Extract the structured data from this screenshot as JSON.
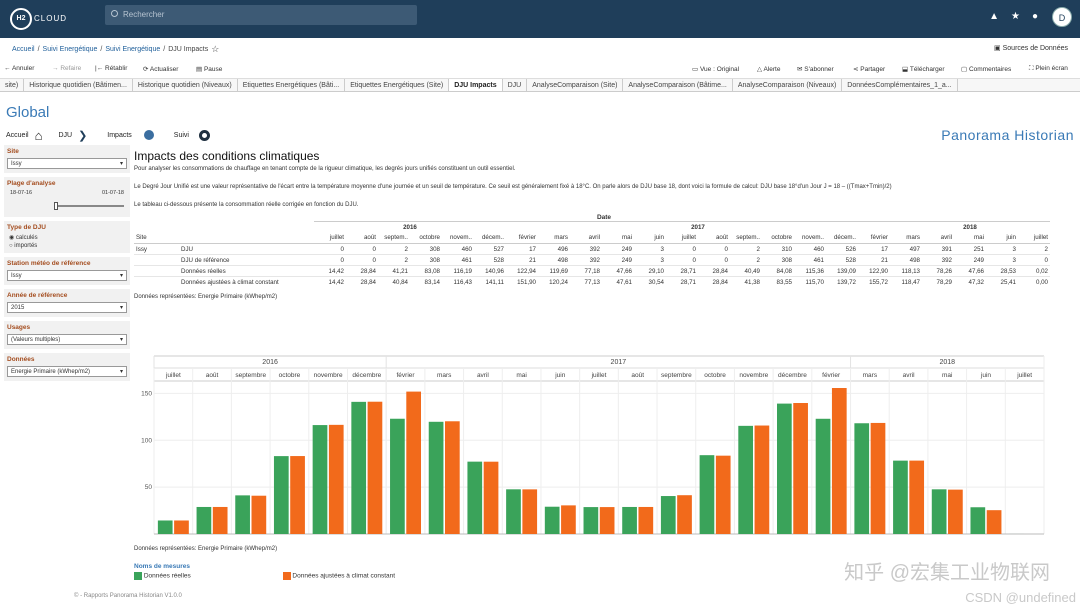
{
  "header": {
    "logo": "H2",
    "logo_text": "CLOUD",
    "search_placeholder": "Rechercher",
    "avatar": "D"
  },
  "breadcrumb": [
    "Accueil",
    "Suivi Energétique",
    "Suivi Energétique",
    "DJU Impacts"
  ],
  "data_sources": "Sources de Données",
  "toolbar": {
    "undo": "Annuler",
    "redo": "Refaire",
    "revert": "Rétablir",
    "refresh": "Actualiser",
    "pause": "Pause",
    "view": "Vue : Original",
    "alert": "Alerte",
    "subscribe": "S'abonner",
    "share": "Partager",
    "download": "Télécharger",
    "comments": "Commentaires",
    "fullscreen": "Plein écran"
  },
  "tabs": [
    "site)",
    "Historique quotidien (Bâtimen...",
    "Historique quotidien (Niveaux)",
    "Etiquettes Energétiques (Bâti...",
    "Etiquettes Energétiques (Site)",
    "DJU Impacts",
    "DJU",
    "AnalyseComparaison (Site)",
    "AnalyseComparaison (Bâtime...",
    "AnalyseComparaison (Niveaux)",
    "DonnéesComplémentaires_1_a..."
  ],
  "page_title": "Global",
  "nav": {
    "home": "Accueil",
    "dju": "DJU",
    "impacts": "Impacts",
    "suivi": "Suivi"
  },
  "brand": "Panorama Historian",
  "filters": {
    "site_label": "Site",
    "site_value": "Issy",
    "range_label": "Plage d'analyse",
    "range_start": "18-07-16",
    "range_end": "01-07-18",
    "dju_label": "Type de DJU",
    "dju_opt1": "calculés",
    "dju_opt2": "importés",
    "station_label": "Station météo de référence",
    "station_value": "Issy",
    "year_label": "Année de référence",
    "year_value": "2015",
    "usage_label": "Usages",
    "usage_value": "(Valeurs multiples)",
    "data_label": "Données",
    "data_value": "Energie Primaire (kWhep/m2)"
  },
  "content": {
    "title": "Impacts des conditions climatiques",
    "p1": "Pour analyser les consommations de chauffage en tenant compte de la rigueur climatique, les degrés jours unifiés constituent un outil essentiel.",
    "p2": "Le Degré Jour Unifié est une valeur représentative de l'écart entre la température moyenne d'une journée et un seuil de température. Ce seuil est généralement fixé à 18°C. On parle alors de DJU base 18, dont voici la formule de calcul: DJU base 18°d'un Jour J = 18 – ((Tmax+Tmin)/2)",
    "p3": "Le tableau ci-dessous présente la consommation réelle corrigée en fonction du DJU.",
    "date_label": "Date",
    "site_col": "Site",
    "site_name": "Issy",
    "note": "Données représentées: Energie Primaire (kWhep/m2)"
  },
  "table": {
    "years": [
      {
        "label": "2016",
        "span": 6
      },
      {
        "label": "2017",
        "span": 12
      },
      {
        "label": "2018",
        "span": 6
      }
    ],
    "months": [
      "juillet",
      "août",
      "septem..",
      "octobre",
      "novem..",
      "décem..",
      "février",
      "mars",
      "avril",
      "mai",
      "juin",
      "juillet",
      "août",
      "septem..",
      "octobre",
      "novem..",
      "décem..",
      "février",
      "mars",
      "avril",
      "mai",
      "juin",
      "juillet"
    ],
    "rows": [
      {
        "name": "DJU",
        "values": [
          "0",
          "0",
          "2",
          "308",
          "460",
          "527",
          "17",
          "496",
          "392",
          "249",
          "3",
          "0",
          "0",
          "2",
          "310",
          "460",
          "526",
          "17",
          "497",
          "391",
          "251",
          "3",
          "2"
        ]
      },
      {
        "name": "DJU de référence",
        "values": [
          "0",
          "0",
          "2",
          "308",
          "461",
          "528",
          "21",
          "498",
          "392",
          "249",
          "3",
          "0",
          "0",
          "2",
          "308",
          "461",
          "528",
          "21",
          "498",
          "392",
          "249",
          "3",
          "0"
        ]
      },
      {
        "name": "Données réelles",
        "values": [
          "14,42",
          "28,84",
          "41,21",
          "83,08",
          "116,19",
          "140,96",
          "122,94",
          "119,69",
          "77,18",
          "47,66",
          "29,10",
          "28,71",
          "28,84",
          "40,49",
          "84,08",
          "115,36",
          "139,09",
          "122,90",
          "118,13",
          "78,26",
          "47,66",
          "28,53",
          "0,02"
        ]
      },
      {
        "name": "Données ajustées à climat constant",
        "values": [
          "14,42",
          "28,84",
          "40,84",
          "83,14",
          "116,43",
          "141,11",
          "151,90",
          "120,24",
          "77,13",
          "47,61",
          "30,54",
          "28,71",
          "28,84",
          "41,38",
          "83,55",
          "115,70",
          "139,72",
          "155,72",
          "118,47",
          "78,29",
          "47,32",
          "25,41",
          "0,00"
        ]
      }
    ]
  },
  "chart_data": {
    "type": "bar",
    "years": [
      {
        "label": "2016",
        "from": 0,
        "to": 6
      },
      {
        "label": "2017",
        "from": 6,
        "to": 18
      },
      {
        "label": "2018",
        "from": 18,
        "to": 24
      }
    ],
    "categories": [
      "juillet",
      "août",
      "septembre",
      "octobre",
      "novembre",
      "décembre",
      "février",
      "mars",
      "avril",
      "mai",
      "juin",
      "juillet",
      "août",
      "septembre",
      "octobre",
      "novembre",
      "décembre",
      "février",
      "mars",
      "avril",
      "mai",
      "juin",
      "juillet"
    ],
    "series": [
      {
        "name": "Données réelles",
        "color": "#3aa35a",
        "values": [
          14.42,
          28.84,
          41.21,
          83.08,
          116.19,
          140.96,
          122.94,
          119.69,
          77.18,
          47.66,
          29.1,
          28.71,
          28.84,
          40.49,
          84.08,
          115.36,
          139.09,
          122.9,
          118.13,
          78.26,
          47.66,
          28.53,
          0.02
        ]
      },
      {
        "name": "Données ajustées à climat constant",
        "color": "#f26a1b",
        "values": [
          14.42,
          28.84,
          40.84,
          83.14,
          116.43,
          141.11,
          151.9,
          120.24,
          77.13,
          47.61,
          30.54,
          28.71,
          28.84,
          41.38,
          83.55,
          115.7,
          139.72,
          155.72,
          118.47,
          78.29,
          47.32,
          25.41,
          0.0
        ]
      }
    ],
    "yticks": [
      "50",
      "100",
      "150"
    ],
    "ylim": [
      0,
      160
    ],
    "note": "Données représentées: Energie Primaire (kWhep/m2)",
    "legend_title": "Noms de mesures"
  },
  "footer": "© - Rapports Panorama Historian V1.0.0",
  "watermark": "知乎 @宏集工业物联网",
  "watermark2": "CSDN @undefined"
}
